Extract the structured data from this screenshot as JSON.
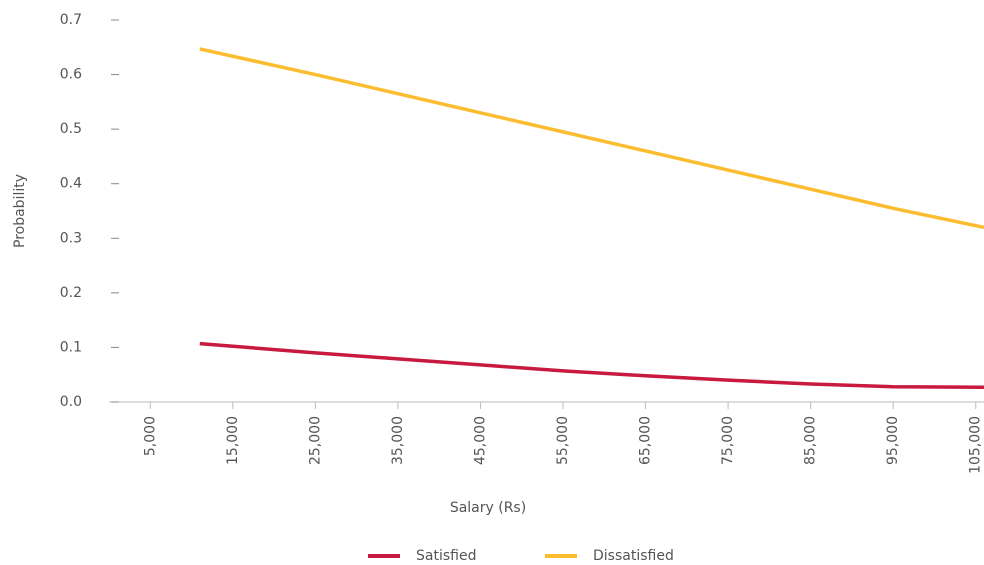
{
  "chart_data": {
    "type": "line",
    "x_label": "Salary (Rs)",
    "y_label": "Probability",
    "x": [
      11000,
      25000,
      35000,
      45000,
      55000,
      65000,
      75000,
      85000,
      95000,
      106000
    ],
    "series": [
      {
        "name": "Satisfied",
        "color": "#c8193f",
        "values": [
          0.107,
          0.09,
          0.079,
          0.068,
          0.057,
          0.048,
          0.04,
          0.033,
          0.028,
          0.027
        ]
      },
      {
        "name": "Dissatisfied",
        "color": "#fbbd2f",
        "values": [
          0.647,
          0.6,
          0.565,
          0.53,
          0.495,
          0.46,
          0.425,
          0.39,
          0.355,
          0.32
        ]
      }
    ],
    "xlim": [
      0,
      106000
    ],
    "xticks": [
      {
        "value": 5000,
        "label": "5,000"
      },
      {
        "value": 15000,
        "label": "15,000"
      },
      {
        "value": 25000,
        "label": "25,000"
      },
      {
        "value": 35000,
        "label": "35,000"
      },
      {
        "value": 45000,
        "label": "45,000"
      },
      {
        "value": 55000,
        "label": "55,000"
      },
      {
        "value": 65000,
        "label": "65,000"
      },
      {
        "value": 75000,
        "label": "75,000"
      },
      {
        "value": 85000,
        "label": "85,000"
      },
      {
        "value": 95000,
        "label": "95,000"
      },
      {
        "value": 105000,
        "label": "105,000"
      }
    ],
    "ylim": [
      0,
      0.7
    ],
    "yticks": [
      {
        "value": 0,
        "label": "0.0"
      },
      0.1,
      0.2,
      0.3,
      0.4,
      0.5,
      0.6,
      0.7
    ],
    "grid": false,
    "legend": "bottom"
  }
}
